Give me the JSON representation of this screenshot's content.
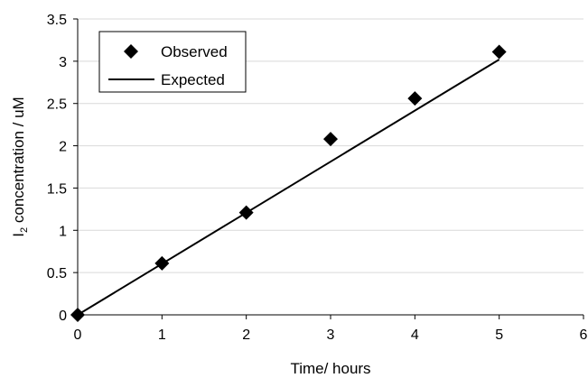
{
  "chart_data": {
    "type": "scatter",
    "xlabel": "Time/ hours",
    "ylabel_main": "I",
    "ylabel_sub": "2",
    "ylabel_rest": " concentration / uM",
    "xlim": [
      0,
      6
    ],
    "ylim": [
      0,
      3.5
    ],
    "x_ticks": [
      "0",
      "1",
      "2",
      "3",
      "4",
      "5",
      "6"
    ],
    "y_ticks": [
      "0",
      "0.5",
      "1",
      "1.5",
      "2",
      "2.5",
      "3",
      "3.5"
    ],
    "grid": "horizontal",
    "legend_position": "top-left",
    "series": [
      {
        "name": "Observed",
        "style": "markers",
        "marker": "diamond",
        "color": "#000000",
        "x": [
          0,
          1,
          2,
          3,
          4,
          5
        ],
        "y": [
          0,
          0.61,
          1.21,
          2.08,
          2.56,
          3.11
        ]
      },
      {
        "name": "Expected",
        "style": "line",
        "color": "#000000",
        "x": [
          0,
          5
        ],
        "y": [
          0,
          3.02
        ]
      }
    ]
  }
}
